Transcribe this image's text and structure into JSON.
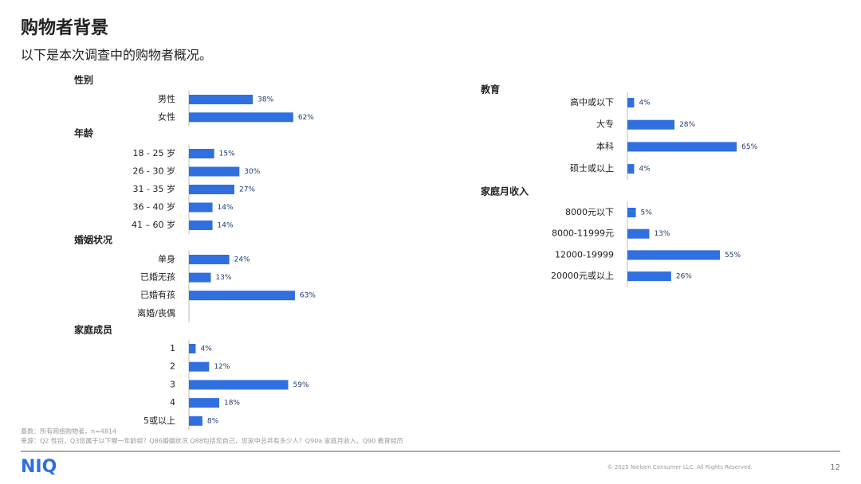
{
  "header": {
    "title": "购物者背景",
    "subtitle": "以下是本次调查中的购物者概况。"
  },
  "chart_data": [
    {
      "type": "bar",
      "orientation": "horizontal",
      "title": "性别",
      "color": "#2f6fe0",
      "categories": [
        "男性",
        "女性"
      ],
      "values": [
        38,
        62
      ],
      "value_labels": [
        "38%",
        "62%"
      ]
    },
    {
      "type": "bar",
      "orientation": "horizontal",
      "title": "年龄",
      "color": "#2f6fe0",
      "categories": [
        "18 - 25 岁",
        "26 - 30 岁",
        "31 - 35 岁",
        "36 - 40 岁",
        "41 – 60 岁"
      ],
      "values": [
        15,
        30,
        27,
        14,
        14
      ],
      "value_labels": [
        "15%",
        "30%",
        "27%",
        "14%",
        "14%"
      ]
    },
    {
      "type": "bar",
      "orientation": "horizontal",
      "title": "婚姻状况",
      "color": "#2f6fe0",
      "categories": [
        "单身",
        "已婚无孩",
        "已婚有孩",
        "离婚/丧偶"
      ],
      "values": [
        24,
        13,
        63,
        0
      ],
      "value_labels": [
        "24%",
        "13%",
        "63%",
        null
      ]
    },
    {
      "type": "bar",
      "orientation": "horizontal",
      "title": "家庭成员",
      "color": "#2f6fe0",
      "categories": [
        "1",
        "2",
        "3",
        "4",
        "5或以上"
      ],
      "values": [
        4,
        12,
        59,
        18,
        8
      ],
      "value_labels": [
        "4%",
        "12%",
        "59%",
        "18%",
        "8%"
      ]
    },
    {
      "type": "bar",
      "orientation": "horizontal",
      "title": "教育",
      "color": "#2f6fe0",
      "categories": [
        "高中或以下",
        "大专",
        "本科",
        "硕士或以上"
      ],
      "values": [
        4,
        28,
        65,
        4
      ],
      "value_labels": [
        "4%",
        "28%",
        "65%",
        "4%"
      ]
    },
    {
      "type": "bar",
      "orientation": "horizontal",
      "title": "家庭月收入",
      "color": "#2f6fe0",
      "categories": [
        "8000元以下",
        "8000-11999元",
        "12000-19999",
        "20000元或以上"
      ],
      "values": [
        5,
        13,
        55,
        26
      ],
      "value_labels": [
        "5%",
        "13%",
        "55%",
        "26%"
      ]
    }
  ],
  "footer": {
    "notes": [
      "基数：所有网络购物者，n=4814",
      "来源：Q2 性别，Q3您属于以下哪一年龄组？Q86婚姻状况 Q88包括您自己，您家中总共有多少人？Q90a 家庭月收入，Q90 教育经历"
    ],
    "logo": "NIQ",
    "copyright": "© 2025 Nielsen Consumer LLC. All Rights Reserved.",
    "page": "12"
  }
}
